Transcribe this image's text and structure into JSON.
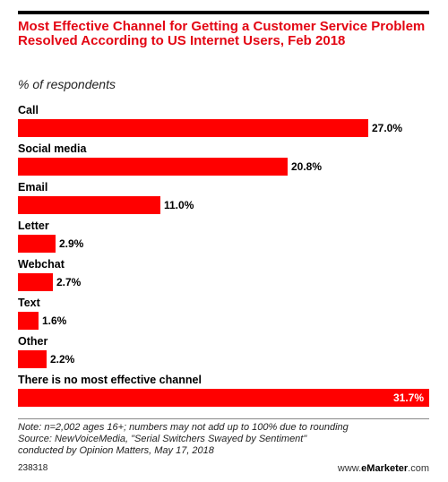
{
  "header": {
    "title": "Most Effective Channel for Getting a Customer Service Problem Resolved According to US Internet Users, Feb 2018",
    "subtitle": "% of respondents"
  },
  "chart_data": {
    "type": "bar",
    "orientation": "horizontal",
    "categories": [
      "Call",
      "Social media",
      "Email",
      "Letter",
      "Webchat",
      "Text",
      "Other",
      "There is no most effective channel"
    ],
    "values": [
      27.0,
      20.8,
      11.0,
      2.9,
      2.7,
      1.6,
      2.2,
      31.7
    ],
    "value_labels": [
      "27.0%",
      "20.8%",
      "11.0%",
      "2.9%",
      "2.7%",
      "1.6%",
      "2.2%",
      "31.7%"
    ],
    "xlim": [
      0,
      31.7
    ],
    "bar_color": "#ff0000",
    "grid": false
  },
  "footer": {
    "note_line1": "Note: n=2,002 ages 16+; numbers may not add up to 100% due to rounding",
    "note_line2": "Source: NewVoiceMedia, \"Serial Switchers Swayed by Sentiment\"",
    "note_line3": "conducted by Opinion Matters, May 17, 2018",
    "chart_id": "238318",
    "brand_prefix": "www.",
    "brand_name": "eMarketer",
    "brand_suffix": ".com"
  }
}
